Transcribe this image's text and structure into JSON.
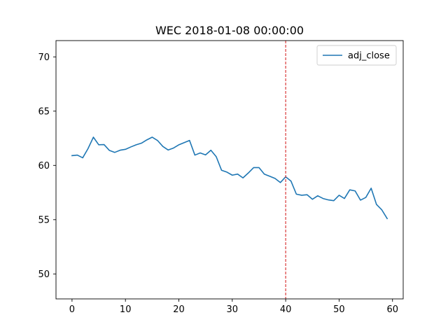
{
  "chart_data": {
    "type": "line",
    "title": "WEC 2018-01-08 00:00:00",
    "xlabel": "",
    "ylabel": "",
    "xlim": [
      -3,
      62
    ],
    "ylim": [
      47.7,
      71.5
    ],
    "xticks": [
      0,
      10,
      20,
      30,
      40,
      50,
      60
    ],
    "yticks": [
      50,
      55,
      60,
      65,
      70
    ],
    "grid": false,
    "legend": {
      "placement": "top-right",
      "entries": [
        "adj_close"
      ]
    },
    "series": [
      {
        "name": "adj_close",
        "color": "#1f77b4",
        "x": [
          0,
          1,
          2,
          3,
          4,
          5,
          6,
          7,
          8,
          9,
          10,
          11,
          12,
          13,
          14,
          15,
          16,
          17,
          18,
          19,
          20,
          21,
          22,
          23,
          24,
          25,
          26,
          27,
          28,
          29,
          30,
          31,
          32,
          33,
          34,
          35,
          36,
          37,
          38,
          39,
          40,
          41,
          42,
          43,
          44,
          45,
          46,
          47,
          48,
          49,
          50,
          51,
          52,
          53,
          54,
          55,
          56,
          57,
          58,
          59
        ],
        "values": [
          60.9,
          60.95,
          60.7,
          61.55,
          62.6,
          61.9,
          61.92,
          61.38,
          61.2,
          61.4,
          61.48,
          61.7,
          61.9,
          62.05,
          62.35,
          62.6,
          62.3,
          61.75,
          61.42,
          61.6,
          61.9,
          62.1,
          62.3,
          60.95,
          61.15,
          60.97,
          61.4,
          60.8,
          59.55,
          59.38,
          59.1,
          59.2,
          58.85,
          59.3,
          59.8,
          59.8,
          59.2,
          59.0,
          58.8,
          58.42,
          58.95,
          58.55,
          57.35,
          57.25,
          57.3,
          56.88,
          57.2,
          56.95,
          56.82,
          56.75,
          57.25,
          56.95,
          57.75,
          57.65,
          56.8,
          57.05,
          57.9,
          56.4,
          55.9,
          55.1
        ]
      }
    ],
    "annotations": [
      {
        "type": "vline",
        "x": 40,
        "color": "#d62728",
        "style": "dashed"
      }
    ]
  }
}
